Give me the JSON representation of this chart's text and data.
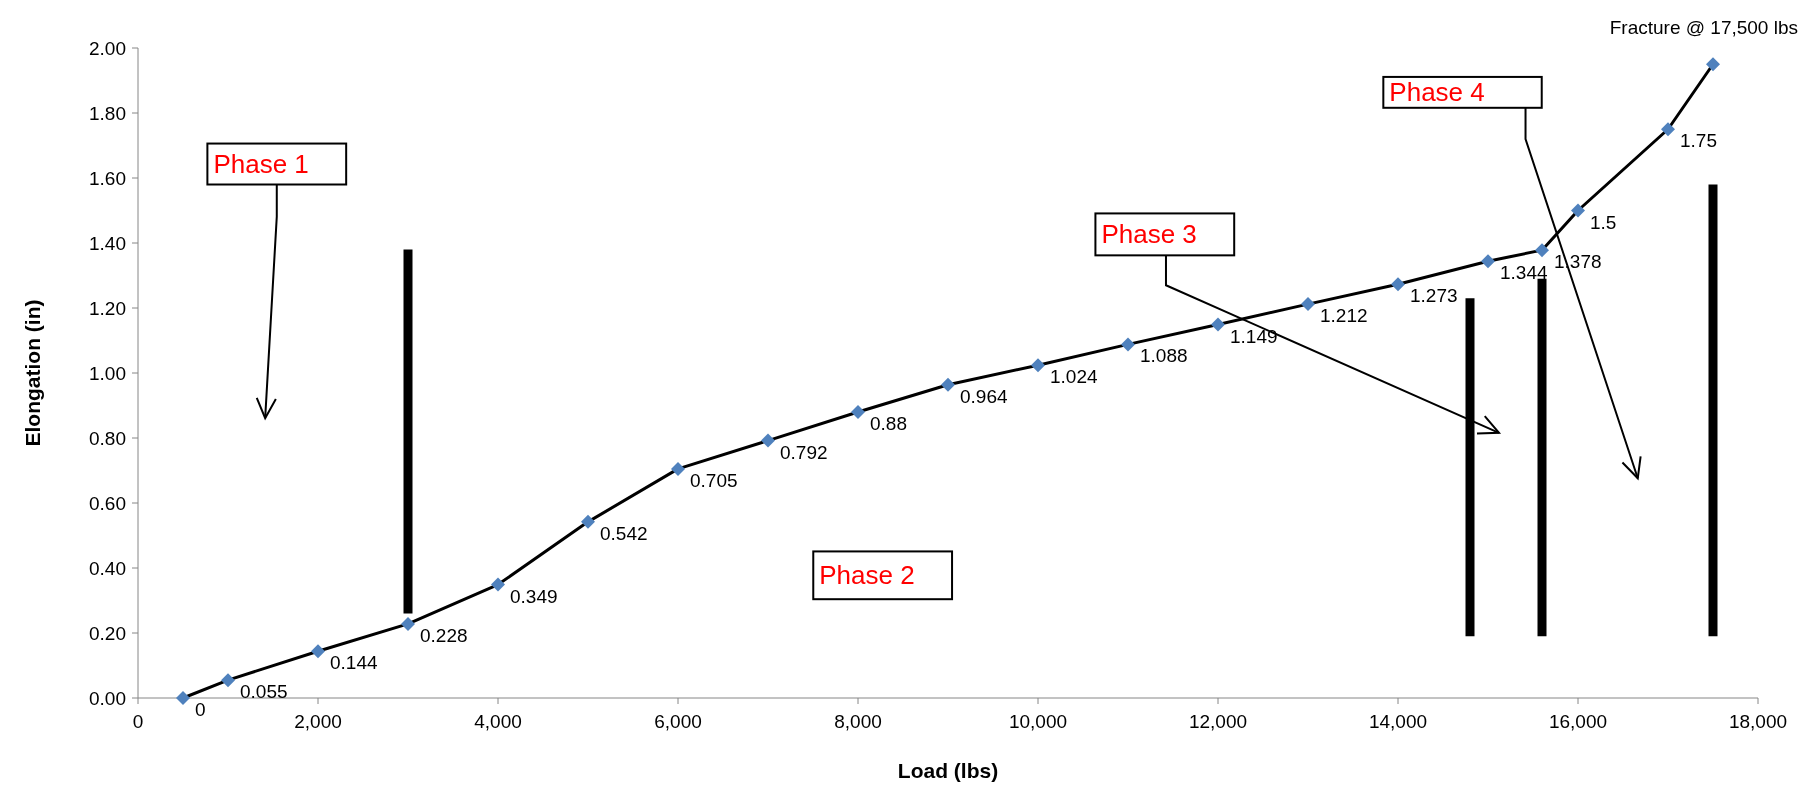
{
  "chart_data": {
    "type": "line",
    "xlabel": "Load (lbs)",
    "ylabel": "Elongation (in)",
    "xlim": [
      0,
      18000
    ],
    "xticks": [
      {
        "value": 0,
        "label": "0"
      },
      {
        "value": 2000,
        "label": "2,000"
      },
      {
        "value": 4000,
        "label": "4,000"
      },
      {
        "value": 6000,
        "label": "6,000"
      },
      {
        "value": 8000,
        "label": "8,000"
      },
      {
        "value": 10000,
        "label": "10,000"
      },
      {
        "value": 12000,
        "label": "12,000"
      },
      {
        "value": 14000,
        "label": "14,000"
      },
      {
        "value": 16000,
        "label": "16,000"
      },
      {
        "value": 18000,
        "label": "18,000"
      }
    ],
    "ylim": [
      0,
      2
    ],
    "yticks": [
      {
        "value": 0,
        "label": "0.00"
      },
      {
        "value": 0.2,
        "label": "0.20"
      },
      {
        "value": 0.4,
        "label": "0.40"
      },
      {
        "value": 0.6,
        "label": "0.60"
      },
      {
        "value": 0.8,
        "label": "0.80"
      },
      {
        "value": 1,
        "label": "1.00"
      },
      {
        "value": 1.2,
        "label": "1.20"
      },
      {
        "value": 1.4,
        "label": "1.40"
      },
      {
        "value": 1.6,
        "label": "1.60"
      },
      {
        "value": 1.8,
        "label": "1.80"
      },
      {
        "value": 2,
        "label": "2.00"
      }
    ],
    "grid": false,
    "series": [
      {
        "color": "#000000",
        "marker": "diamond",
        "x": [
          500,
          1000,
          2000,
          3000,
          4000,
          5000,
          6000,
          7000,
          8000,
          9000,
          10000,
          11000,
          12000,
          13000,
          14000,
          15000,
          15600,
          16000,
          17000,
          17500
        ],
        "values": [
          0,
          0.055,
          0.144,
          0.228,
          0.349,
          0.542,
          0.705,
          0.792,
          0.88,
          0.964,
          1.024,
          1.088,
          1.149,
          1.212,
          1.273,
          1.344,
          1.378,
          1.5,
          1.75,
          1.95
        ],
        "value_labels": [
          "0",
          "0.055",
          "0.144",
          "0.228",
          "0.349",
          "0.542",
          "0.705",
          "0.792",
          "0.88",
          "0.964",
          "1.024",
          "1.088",
          "1.149",
          "1.212",
          "1.273",
          "1.344",
          "1.378",
          "1.5",
          "1.75",
          null
        ]
      },
      {
        "color": "#000000",
        "marker": "none",
        "x": [
          3000,
          3000
        ],
        "values": [
          0.26,
          1.38
        ]
      },
      {
        "color": "#000000",
        "marker": "none",
        "x": [
          14800,
          14800
        ],
        "values": [
          0.19,
          1.23
        ]
      },
      {
        "color": "#000000",
        "marker": "none",
        "x": [
          15600,
          15600
        ],
        "values": [
          0.19,
          1.29
        ]
      },
      {
        "color": "#000000",
        "marker": "none",
        "x": [
          17500,
          17500
        ],
        "values": [
          0.19,
          1.58
        ]
      }
    ],
    "annotations": [
      "Phase 1",
      "Phase 2",
      "Phase 3",
      "Phase 4",
      "Fracture @ 17,500 lbs"
    ]
  }
}
